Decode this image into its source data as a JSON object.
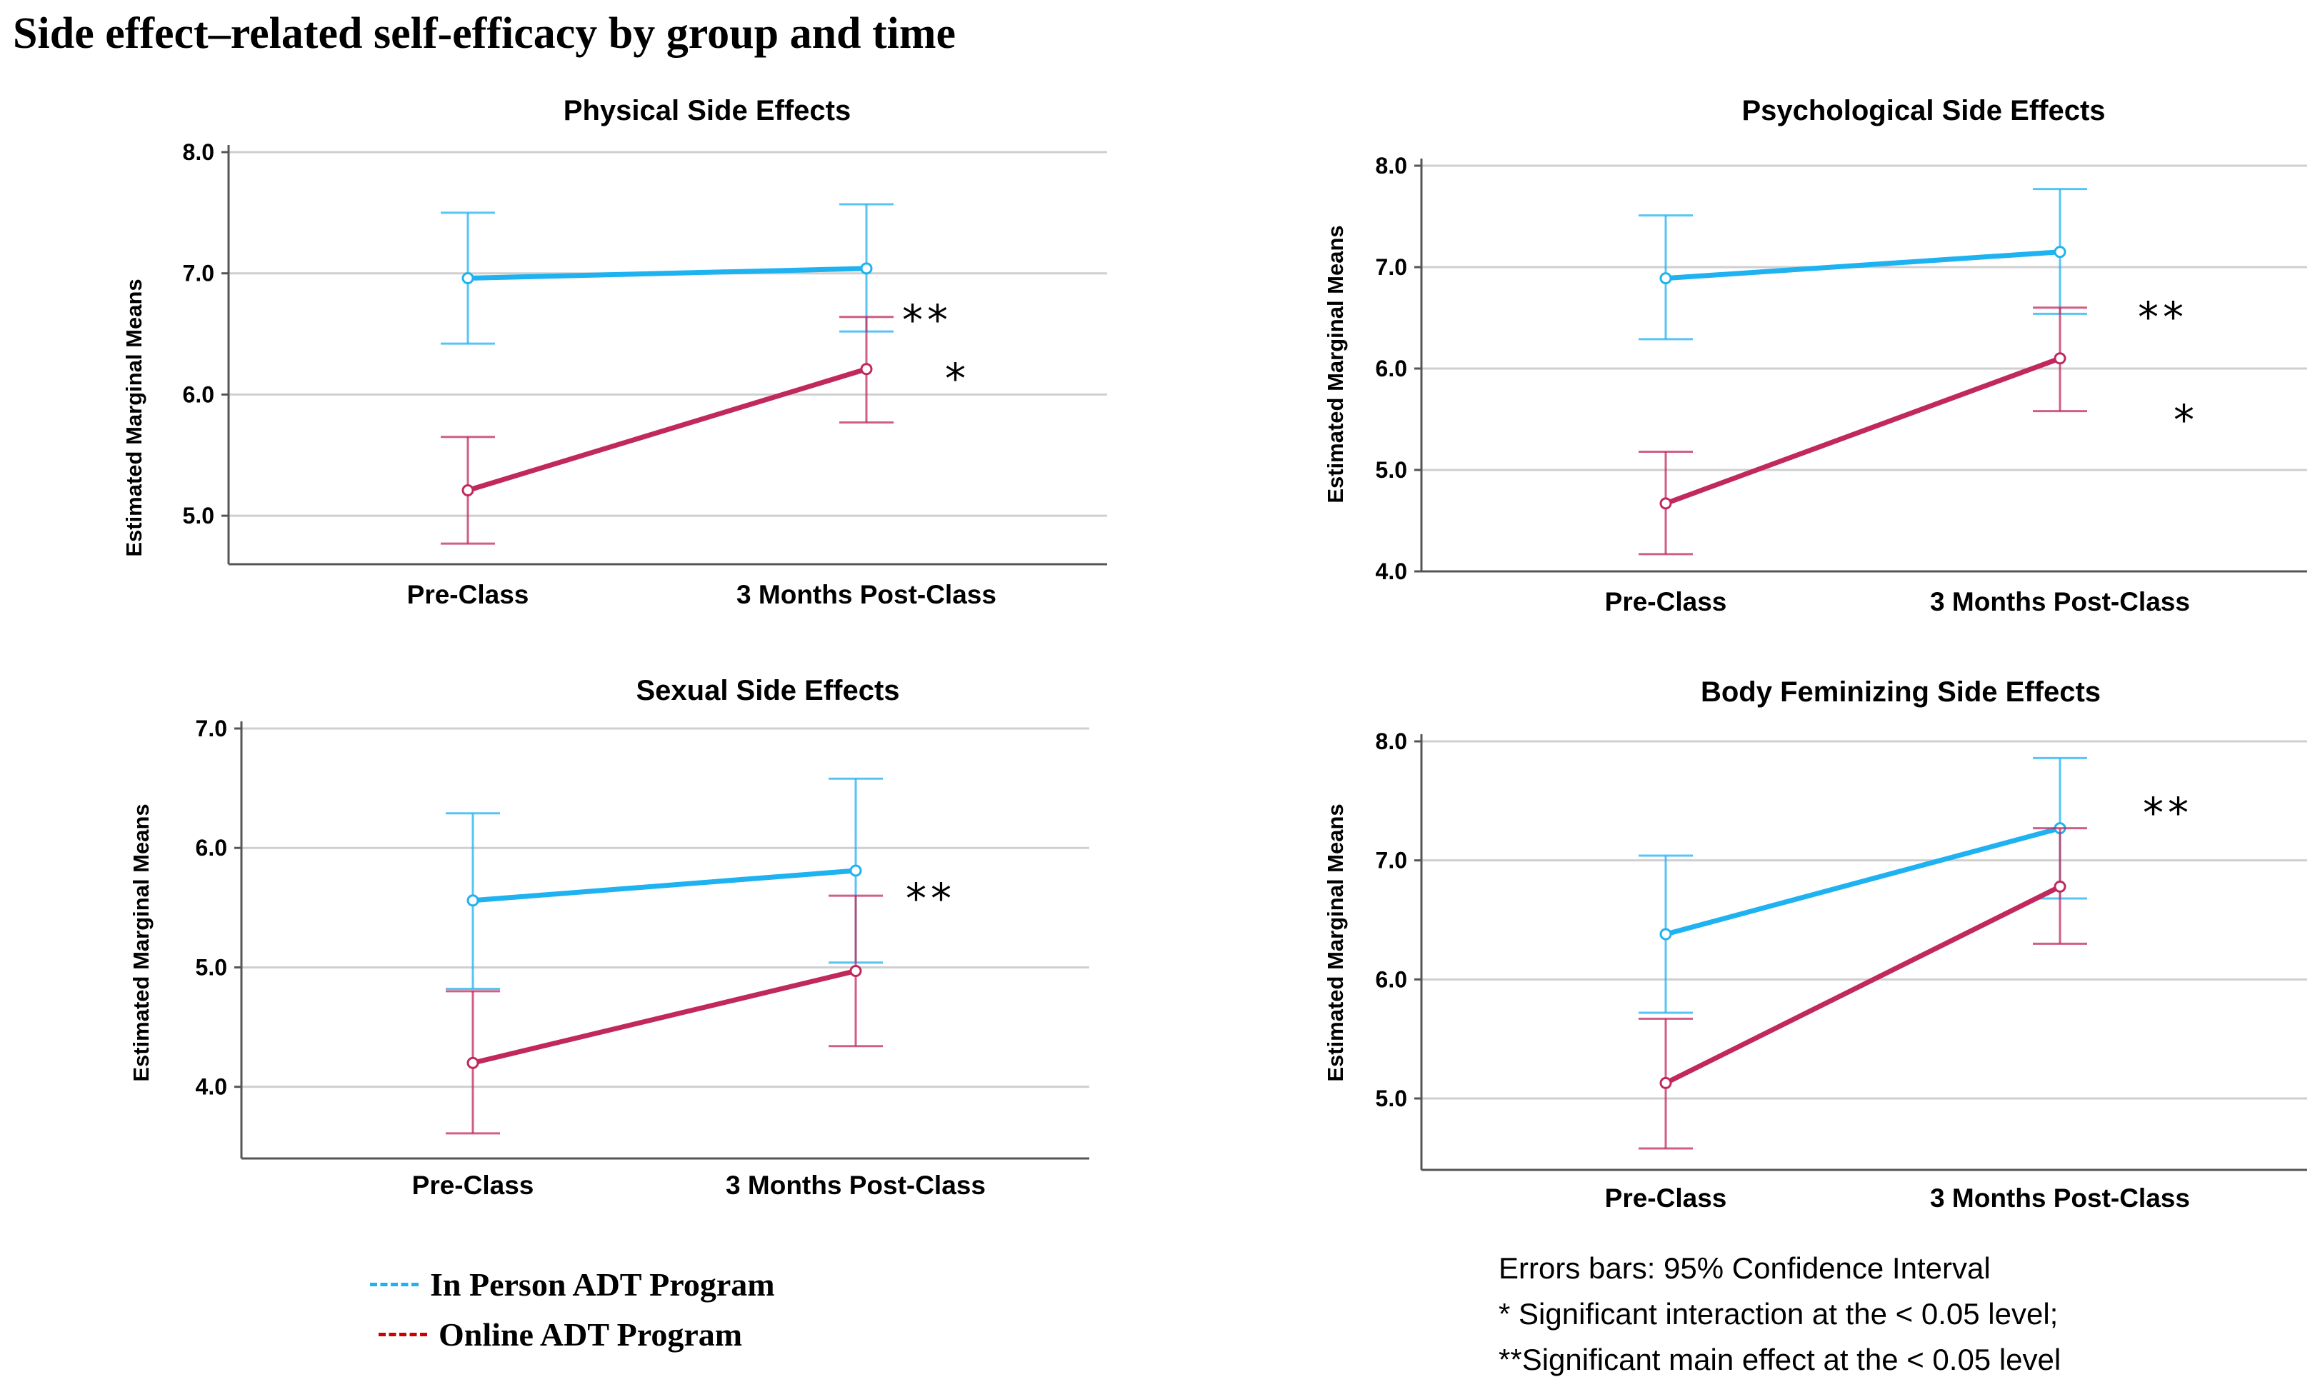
{
  "figure_title": "Side effect–related self-efficacy by group and time",
  "colors": {
    "in_person": "#1fb2f0",
    "online": "#c0285e",
    "grid": "#cfcfcf",
    "axis": "#555555"
  },
  "legend": [
    {
      "label": "In Person ADT Program",
      "color": "#1fb2f0",
      "swatch_color": "#1fb2f0"
    },
    {
      "label": "Online ADT Program",
      "color": "#c0285e",
      "swatch_color": "#cc0000"
    }
  ],
  "notes": [
    "Errors bars: 95% Confidence Interval",
    "* Significant interaction at the < 0.05 level;",
    "**Significant main effect at the < 0.05 level"
  ],
  "chart_data": [
    {
      "type": "line",
      "title": "Physical Side Effects",
      "xlabel": "",
      "ylabel": "Estimated Marginal Means",
      "categories": [
        "Pre-Class",
        "3 Months Post-Class"
      ],
      "ylim": [
        4.6,
        8.0
      ],
      "yticks": [
        5.0,
        6.0,
        7.0,
        8.0
      ],
      "ytick_labels": [
        "5.0",
        "6.0",
        "7.0",
        "8.0"
      ],
      "grid": true,
      "series": [
        {
          "name": "In Person ADT Program",
          "values": [
            6.96,
            7.04
          ],
          "ci_low": [
            6.42,
            6.52
          ],
          "ci_high": [
            7.5,
            7.57
          ]
        },
        {
          "name": "Online ADT Program",
          "values": [
            5.21,
            6.21
          ],
          "ci_low": [
            4.77,
            5.77
          ],
          "ci_high": [
            5.65,
            6.64
          ]
        }
      ],
      "annotations": [
        "**",
        "*"
      ]
    },
    {
      "type": "line",
      "title": "Psychological Side Effects",
      "xlabel": "",
      "ylabel": "Estimated Marginal Means",
      "categories": [
        "Pre-Class",
        "3 Months Post-Class"
      ],
      "ylim": [
        4.0,
        8.0
      ],
      "yticks": [
        4.0,
        5.0,
        6.0,
        7.0,
        8.0
      ],
      "ytick_labels": [
        "4.0",
        "5.0",
        "6.0",
        "7.0",
        "8.0"
      ],
      "grid": true,
      "series": [
        {
          "name": "In Person ADT Program",
          "values": [
            6.89,
            7.15
          ],
          "ci_low": [
            6.29,
            6.54
          ],
          "ci_high": [
            7.51,
            7.77
          ]
        },
        {
          "name": "Online ADT Program",
          "values": [
            4.67,
            6.1
          ],
          "ci_low": [
            4.17,
            5.58
          ],
          "ci_high": [
            5.18,
            6.6
          ]
        }
      ],
      "annotations": [
        "**",
        "*"
      ]
    },
    {
      "type": "line",
      "title": "Sexual Side Effects",
      "xlabel": "",
      "ylabel": "Estimated Marginal Means",
      "categories": [
        "Pre-Class",
        "3 Months Post-Class"
      ],
      "ylim": [
        3.4,
        7.0
      ],
      "yticks": [
        4.0,
        5.0,
        6.0,
        7.0
      ],
      "ytick_labels": [
        "4.0",
        "5.0",
        "6.0",
        "7.0"
      ],
      "grid": true,
      "series": [
        {
          "name": "In Person ADT Program",
          "values": [
            5.56,
            5.81
          ],
          "ci_low": [
            4.82,
            5.04
          ],
          "ci_high": [
            6.29,
            6.58
          ]
        },
        {
          "name": "Online ADT Program",
          "values": [
            4.2,
            4.97
          ],
          "ci_low": [
            3.61,
            4.34
          ],
          "ci_high": [
            4.8,
            5.6
          ]
        }
      ],
      "annotations": [
        "**"
      ]
    },
    {
      "type": "line",
      "title": "Body Feminizing Side Effects",
      "xlabel": "",
      "ylabel": "Estimated Marginal Means",
      "categories": [
        "Pre-Class",
        "3 Months Post-Class"
      ],
      "ylim": [
        4.4,
        8.0
      ],
      "yticks": [
        5.0,
        6.0,
        7.0,
        8.0
      ],
      "ytick_labels": [
        "5.0",
        "6.0",
        "7.0",
        "8.0"
      ],
      "grid": true,
      "series": [
        {
          "name": "In Person ADT Program",
          "values": [
            6.38,
            7.27
          ],
          "ci_low": [
            5.72,
            6.68
          ],
          "ci_high": [
            7.04,
            7.86
          ]
        },
        {
          "name": "Online ADT Program",
          "values": [
            5.13,
            6.78
          ],
          "ci_low": [
            4.58,
            6.3
          ],
          "ci_high": [
            5.67,
            7.27
          ]
        }
      ],
      "annotations": [
        "**"
      ]
    }
  ]
}
